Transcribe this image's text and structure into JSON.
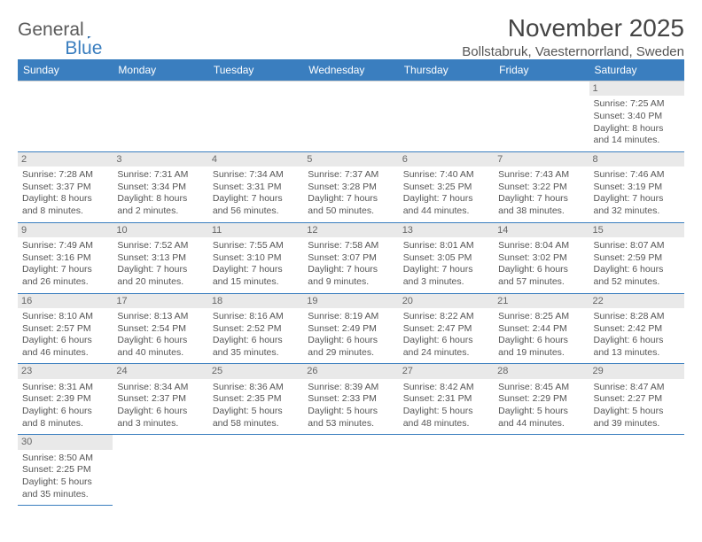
{
  "logo": {
    "text1": "General",
    "text2": "Blue"
  },
  "header": {
    "title": "November 2025",
    "subtitle": "Bollstabruk, Vaesternorrland, Sweden"
  },
  "style": {
    "header_bg": "#3a7ebf",
    "header_fg": "#ffffff",
    "daynum_bg": "#e9e9e9",
    "daynum_fg": "#666666",
    "cell_border": "#3a7ebf",
    "body_text": "#555555",
    "title_fontsize": 28,
    "subtitle_fontsize": 15,
    "th_fontsize": 12,
    "cell_fontsize": 10.5
  },
  "weekdays": [
    "Sunday",
    "Monday",
    "Tuesday",
    "Wednesday",
    "Thursday",
    "Friday",
    "Saturday"
  ],
  "weeks": [
    [
      null,
      null,
      null,
      null,
      null,
      null,
      {
        "n": "1",
        "sr": "Sunrise: 7:25 AM",
        "ss": "Sunset: 3:40 PM",
        "dl": "Daylight: 8 hours and 14 minutes."
      }
    ],
    [
      {
        "n": "2",
        "sr": "Sunrise: 7:28 AM",
        "ss": "Sunset: 3:37 PM",
        "dl": "Daylight: 8 hours and 8 minutes."
      },
      {
        "n": "3",
        "sr": "Sunrise: 7:31 AM",
        "ss": "Sunset: 3:34 PM",
        "dl": "Daylight: 8 hours and 2 minutes."
      },
      {
        "n": "4",
        "sr": "Sunrise: 7:34 AM",
        "ss": "Sunset: 3:31 PM",
        "dl": "Daylight: 7 hours and 56 minutes."
      },
      {
        "n": "5",
        "sr": "Sunrise: 7:37 AM",
        "ss": "Sunset: 3:28 PM",
        "dl": "Daylight: 7 hours and 50 minutes."
      },
      {
        "n": "6",
        "sr": "Sunrise: 7:40 AM",
        "ss": "Sunset: 3:25 PM",
        "dl": "Daylight: 7 hours and 44 minutes."
      },
      {
        "n": "7",
        "sr": "Sunrise: 7:43 AM",
        "ss": "Sunset: 3:22 PM",
        "dl": "Daylight: 7 hours and 38 minutes."
      },
      {
        "n": "8",
        "sr": "Sunrise: 7:46 AM",
        "ss": "Sunset: 3:19 PM",
        "dl": "Daylight: 7 hours and 32 minutes."
      }
    ],
    [
      {
        "n": "9",
        "sr": "Sunrise: 7:49 AM",
        "ss": "Sunset: 3:16 PM",
        "dl": "Daylight: 7 hours and 26 minutes."
      },
      {
        "n": "10",
        "sr": "Sunrise: 7:52 AM",
        "ss": "Sunset: 3:13 PM",
        "dl": "Daylight: 7 hours and 20 minutes."
      },
      {
        "n": "11",
        "sr": "Sunrise: 7:55 AM",
        "ss": "Sunset: 3:10 PM",
        "dl": "Daylight: 7 hours and 15 minutes."
      },
      {
        "n": "12",
        "sr": "Sunrise: 7:58 AM",
        "ss": "Sunset: 3:07 PM",
        "dl": "Daylight: 7 hours and 9 minutes."
      },
      {
        "n": "13",
        "sr": "Sunrise: 8:01 AM",
        "ss": "Sunset: 3:05 PM",
        "dl": "Daylight: 7 hours and 3 minutes."
      },
      {
        "n": "14",
        "sr": "Sunrise: 8:04 AM",
        "ss": "Sunset: 3:02 PM",
        "dl": "Daylight: 6 hours and 57 minutes."
      },
      {
        "n": "15",
        "sr": "Sunrise: 8:07 AM",
        "ss": "Sunset: 2:59 PM",
        "dl": "Daylight: 6 hours and 52 minutes."
      }
    ],
    [
      {
        "n": "16",
        "sr": "Sunrise: 8:10 AM",
        "ss": "Sunset: 2:57 PM",
        "dl": "Daylight: 6 hours and 46 minutes."
      },
      {
        "n": "17",
        "sr": "Sunrise: 8:13 AM",
        "ss": "Sunset: 2:54 PM",
        "dl": "Daylight: 6 hours and 40 minutes."
      },
      {
        "n": "18",
        "sr": "Sunrise: 8:16 AM",
        "ss": "Sunset: 2:52 PM",
        "dl": "Daylight: 6 hours and 35 minutes."
      },
      {
        "n": "19",
        "sr": "Sunrise: 8:19 AM",
        "ss": "Sunset: 2:49 PM",
        "dl": "Daylight: 6 hours and 29 minutes."
      },
      {
        "n": "20",
        "sr": "Sunrise: 8:22 AM",
        "ss": "Sunset: 2:47 PM",
        "dl": "Daylight: 6 hours and 24 minutes."
      },
      {
        "n": "21",
        "sr": "Sunrise: 8:25 AM",
        "ss": "Sunset: 2:44 PM",
        "dl": "Daylight: 6 hours and 19 minutes."
      },
      {
        "n": "22",
        "sr": "Sunrise: 8:28 AM",
        "ss": "Sunset: 2:42 PM",
        "dl": "Daylight: 6 hours and 13 minutes."
      }
    ],
    [
      {
        "n": "23",
        "sr": "Sunrise: 8:31 AM",
        "ss": "Sunset: 2:39 PM",
        "dl": "Daylight: 6 hours and 8 minutes."
      },
      {
        "n": "24",
        "sr": "Sunrise: 8:34 AM",
        "ss": "Sunset: 2:37 PM",
        "dl": "Daylight: 6 hours and 3 minutes."
      },
      {
        "n": "25",
        "sr": "Sunrise: 8:36 AM",
        "ss": "Sunset: 2:35 PM",
        "dl": "Daylight: 5 hours and 58 minutes."
      },
      {
        "n": "26",
        "sr": "Sunrise: 8:39 AM",
        "ss": "Sunset: 2:33 PM",
        "dl": "Daylight: 5 hours and 53 minutes."
      },
      {
        "n": "27",
        "sr": "Sunrise: 8:42 AM",
        "ss": "Sunset: 2:31 PM",
        "dl": "Daylight: 5 hours and 48 minutes."
      },
      {
        "n": "28",
        "sr": "Sunrise: 8:45 AM",
        "ss": "Sunset: 2:29 PM",
        "dl": "Daylight: 5 hours and 44 minutes."
      },
      {
        "n": "29",
        "sr": "Sunrise: 8:47 AM",
        "ss": "Sunset: 2:27 PM",
        "dl": "Daylight: 5 hours and 39 minutes."
      }
    ],
    [
      {
        "n": "30",
        "sr": "Sunrise: 8:50 AM",
        "ss": "Sunset: 2:25 PM",
        "dl": "Daylight: 5 hours and 35 minutes."
      },
      null,
      null,
      null,
      null,
      null,
      null
    ]
  ]
}
